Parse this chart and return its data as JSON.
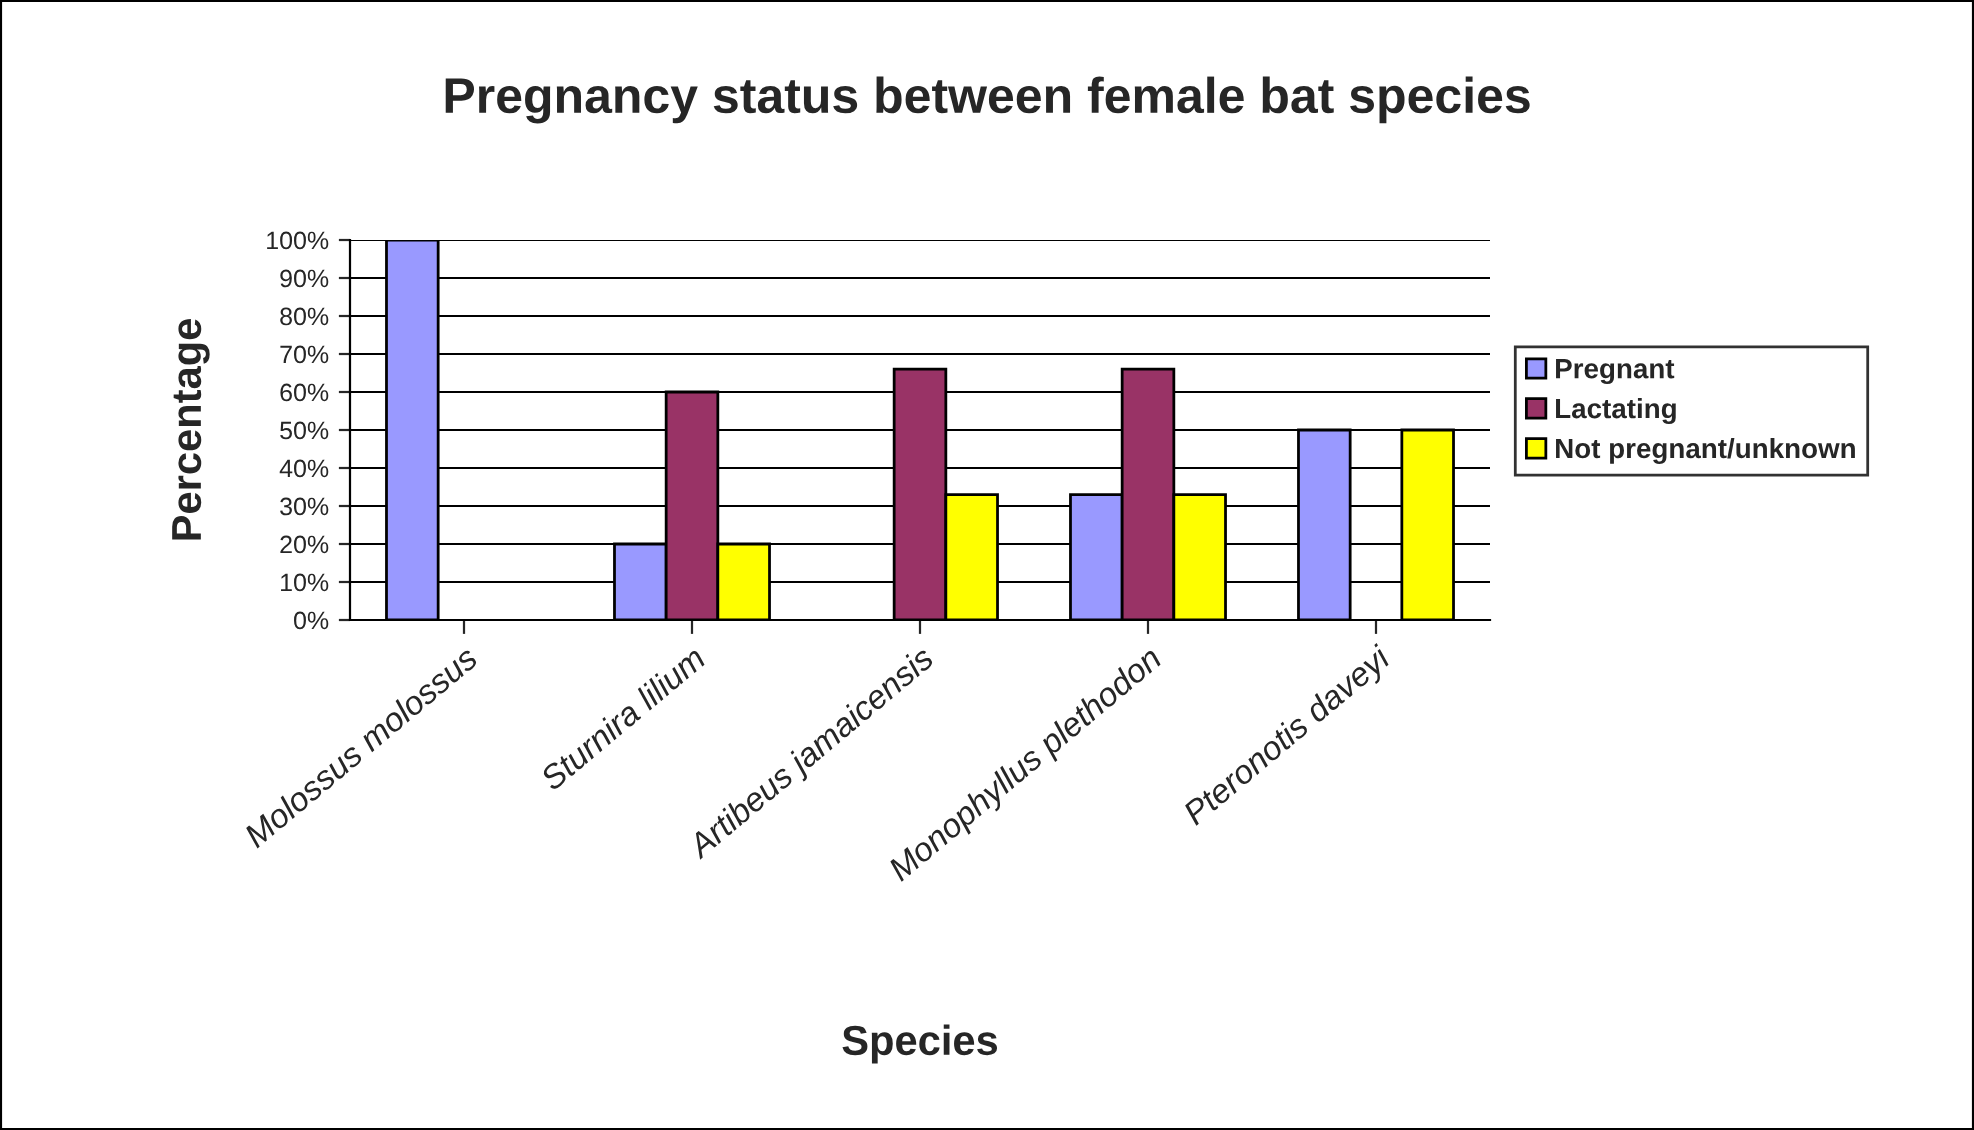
{
  "chart_data": {
    "type": "bar",
    "title": "Pregnancy status between female bat species",
    "xlabel": "Species",
    "ylabel": "Percentage",
    "categories": [
      "Molossus molossus",
      "Sturnira lilium",
      "Artibeus jamaicensis",
      "Monophyllus plethodon",
      "Pteronotis daveyi"
    ],
    "series": [
      {
        "name": "Pregnant",
        "color": "#9999ff",
        "values": [
          100,
          20,
          null,
          33,
          50
        ]
      },
      {
        "name": "Lactating",
        "color": "#993366",
        "values": [
          null,
          60,
          66,
          66,
          null
        ]
      },
      {
        "name": "Not pregnant/unknown",
        "color": "#ffff00",
        "values": [
          null,
          20,
          33,
          33,
          50
        ]
      }
    ],
    "ylim": [
      0,
      100
    ],
    "yticks": [
      {
        "value": 0,
        "label": "0%"
      },
      {
        "value": 10,
        "label": "10%"
      },
      {
        "value": 20,
        "label": "20%"
      },
      {
        "value": 30,
        "label": "30%"
      },
      {
        "value": 40,
        "label": "40%"
      },
      {
        "value": 50,
        "label": "50%"
      },
      {
        "value": 60,
        "label": "60%"
      },
      {
        "value": 70,
        "label": "70%"
      },
      {
        "value": 80,
        "label": "80%"
      },
      {
        "value": 90,
        "label": "90%"
      },
      {
        "value": 100,
        "label": "100%"
      }
    ],
    "grid": "y",
    "legend": "right"
  }
}
